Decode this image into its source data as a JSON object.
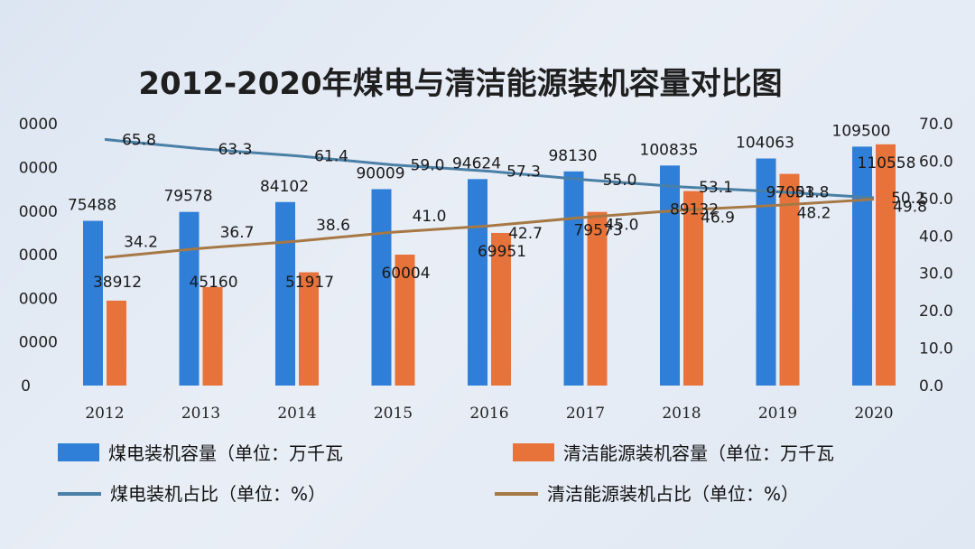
{
  "chart_data": {
    "type": "bar",
    "title": "2012-2020年煤电与清洁能源装机容量对比图",
    "categories": [
      "2012",
      "2013",
      "2014",
      "2015",
      "2016",
      "2017",
      "2018",
      "2019",
      "2020"
    ],
    "series": [
      {
        "name": "煤电装机容量（单位：万千瓦",
        "kind": "bar",
        "axis": "left",
        "color": "#2f7fd8",
        "values": [
          75488,
          79578,
          84102,
          90009,
          94624,
          98130,
          100835,
          104063,
          109500
        ]
      },
      {
        "name": "清洁能源装机容量（单位：万千瓦",
        "kind": "bar",
        "axis": "left",
        "color": "#e8733a",
        "values": [
          38912,
          45160,
          51917,
          60004,
          69951,
          79573,
          89132,
          97003,
          110558
        ]
      },
      {
        "name": "煤电装机占比（单位：%）",
        "kind": "line",
        "axis": "right",
        "color": "#4a7fa6",
        "values": [
          65.8,
          63.3,
          61.4,
          59.0,
          57.3,
          55.0,
          53.1,
          51.8,
          50.2
        ]
      },
      {
        "name": "清洁能源装机占比（单位：%）",
        "kind": "line",
        "axis": "right",
        "color": "#a67845",
        "values": [
          34.2,
          36.7,
          38.6,
          41.0,
          42.7,
          45.0,
          46.9,
          48.2,
          49.8
        ]
      }
    ],
    "y_left": {
      "min": 0,
      "max": 120000,
      "ticks": [
        "0",
        "0000",
        "0000",
        "0000",
        "0000",
        "0000",
        "0000"
      ]
    },
    "y_right": {
      "min": 0,
      "max": 70,
      "ticks": [
        "0.0",
        "10.0",
        "20.0",
        "30.0",
        "40.0",
        "50.0",
        "60.0",
        "70.0"
      ]
    },
    "legend_position": "bottom",
    "grid": false,
    "bar_labels": [
      "75488",
      "79578",
      "84102",
      "90009",
      "94624",
      "98130",
      "100835",
      "104063",
      "109500"
    ],
    "bar2_labels": [
      "38912",
      "45160",
      "51917",
      "60004",
      "69951",
      "79573",
      "89132",
      "97003",
      "110558"
    ],
    "line1_labels": [
      "65.8",
      "63.3",
      "61.4",
      "59.0",
      "57.3",
      "55.0",
      "53.1",
      "51.8",
      "50.2"
    ],
    "line2_labels": [
      "34.2",
      "36.7",
      "38.6",
      "41.0",
      "42.7",
      "45.0",
      "46.9",
      "48.2",
      "49.8"
    ]
  }
}
